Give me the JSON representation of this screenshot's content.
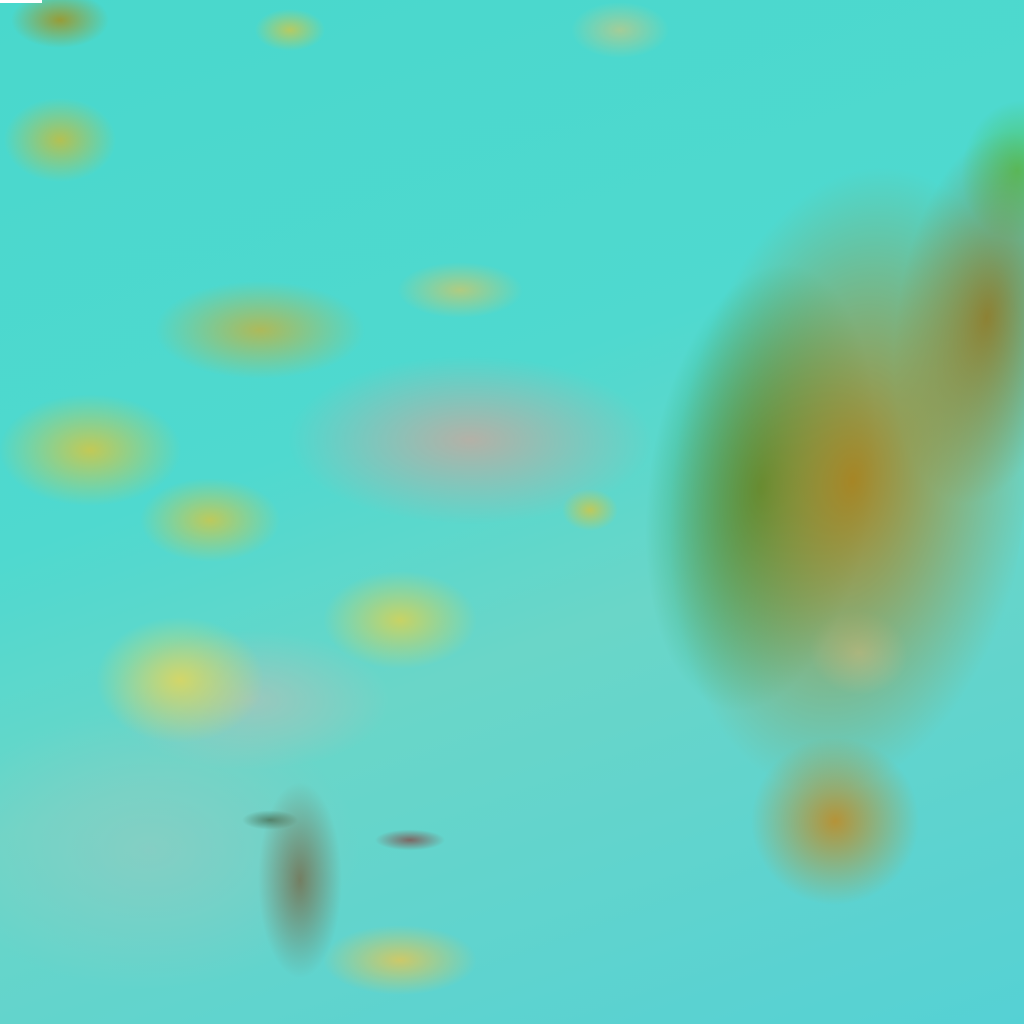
{
  "image": {
    "kind": "false-color satellite imagery",
    "colors": {
      "clear_sky": "#3fd6c8",
      "low_cloud": "#c8c850",
      "high_cloud_front": "#aa821e",
      "cloud_edges": "#28a032",
      "haze": "#c4aaa0",
      "corner_mark": "#ffffff"
    }
  }
}
